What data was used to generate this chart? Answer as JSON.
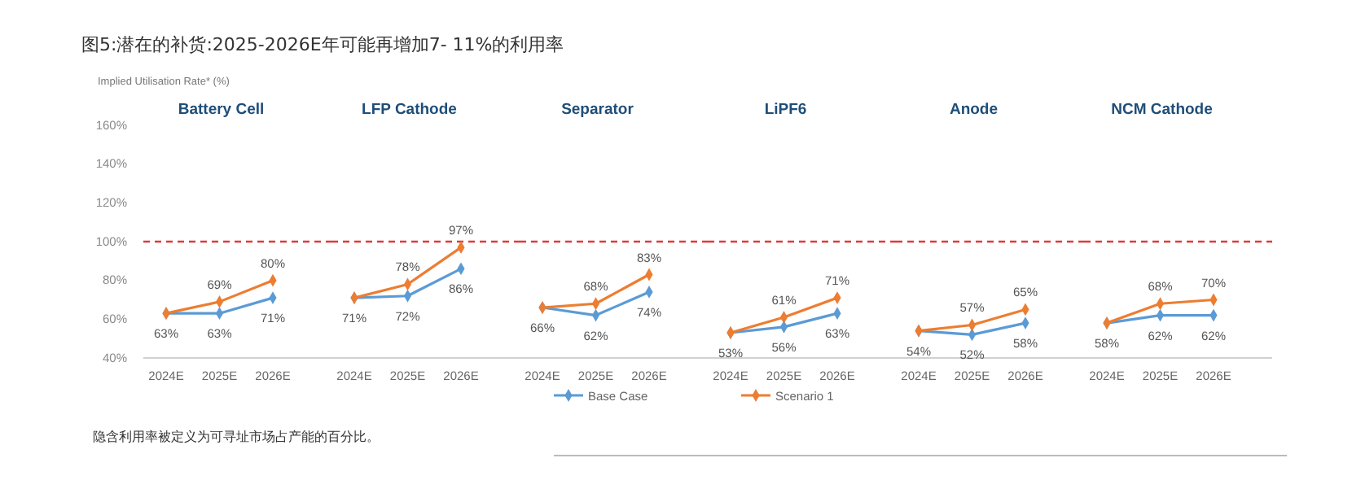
{
  "chart_data": [
    {
      "type": "line",
      "title": "图5:潜在的补货:2025-2026E年可能再增加7- 11%的利用率",
      "ylabel": "Implied Utilisation Rate* (%)",
      "subtitle": "Battery Cell",
      "categories": [
        "2024E",
        "2025E",
        "2026E"
      ],
      "ylim": [
        40,
        160
      ],
      "yticks": [
        {
          "value": 40,
          "label": "40%"
        },
        {
          "value": 60,
          "label": "60%"
        },
        {
          "value": 80,
          "label": "80%"
        },
        {
          "value": 100,
          "label": "100%"
        },
        {
          "value": 120,
          "label": "120%"
        },
        {
          "value": 140,
          "label": "140%"
        },
        {
          "value": 160,
          "label": "160%"
        }
      ],
      "marker": "diamond",
      "legend": "bottom",
      "ref_lines": [
        {
          "axis": "y",
          "value": 100,
          "color": "#e03a3a",
          "line_style": "dashed"
        }
      ],
      "annotations": [
        "隐含利用率被定义为可寻址市场占产能的百分比。"
      ],
      "series": [
        {
          "name": "Base Case",
          "color": "#5b9bd5",
          "values": [
            63,
            63,
            71
          ],
          "value_labels": [
            "63%",
            "63%",
            "71%"
          ]
        },
        {
          "name": "Scenario 1",
          "color": "#ed7d31",
          "values": [
            63,
            69,
            80
          ],
          "value_labels": [
            null,
            "69%",
            "80%"
          ]
        }
      ]
    },
    {
      "type": "line",
      "subtitle": "LFP Cathode",
      "categories": [
        "2024E",
        "2025E",
        "2026E"
      ],
      "ylim": [
        40,
        160
      ],
      "tick_labels": "x",
      "marker": "diamond",
      "ref_lines": [
        {
          "axis": "y",
          "value": 100,
          "color": "#e03a3a",
          "line_style": "dashed"
        }
      ],
      "series": [
        {
          "color": "#5b9bd5",
          "values": [
            71,
            72,
            86
          ],
          "value_labels": [
            "71%",
            "72%",
            "86%"
          ]
        },
        {
          "color": "#ed7d31",
          "values": [
            71,
            78,
            97
          ],
          "value_labels": [
            null,
            "78%",
            "97%"
          ]
        }
      ]
    },
    {
      "type": "line",
      "subtitle": "Separator",
      "categories": [
        "2024E",
        "2025E",
        "2026E"
      ],
      "ylim": [
        40,
        160
      ],
      "tick_labels": "x",
      "marker": "diamond",
      "ref_lines": [
        {
          "axis": "y",
          "value": 100,
          "color": "#e03a3a",
          "line_style": "dashed"
        }
      ],
      "series": [
        {
          "color": "#5b9bd5",
          "values": [
            66,
            62,
            74
          ],
          "value_labels": [
            "66%",
            "62%",
            "74%"
          ]
        },
        {
          "color": "#ed7d31",
          "values": [
            66,
            68,
            83
          ],
          "value_labels": [
            null,
            "68%",
            "83%"
          ]
        }
      ]
    },
    {
      "type": "line",
      "subtitle": "LiPF6",
      "categories": [
        "2024E",
        "2025E",
        "2026E"
      ],
      "ylim": [
        40,
        160
      ],
      "tick_labels": "x",
      "marker": "diamond",
      "ref_lines": [
        {
          "axis": "y",
          "value": 100,
          "color": "#e03a3a",
          "line_style": "dashed"
        }
      ],
      "series": [
        {
          "color": "#5b9bd5",
          "values": [
            53,
            56,
            63
          ],
          "value_labels": [
            "53%",
            "56%",
            "63%"
          ]
        },
        {
          "color": "#ed7d31",
          "values": [
            53,
            61,
            71
          ],
          "value_labels": [
            null,
            "61%",
            "71%"
          ]
        }
      ]
    },
    {
      "type": "line",
      "subtitle": "Anode",
      "categories": [
        "2024E",
        "2025E",
        "2026E"
      ],
      "ylim": [
        40,
        160
      ],
      "tick_labels": "x",
      "marker": "diamond",
      "ref_lines": [
        {
          "axis": "y",
          "value": 100,
          "color": "#e03a3a",
          "line_style": "dashed"
        }
      ],
      "series": [
        {
          "color": "#5b9bd5",
          "values": [
            54,
            52,
            58
          ],
          "value_labels": [
            "54%",
            "52%",
            "58%"
          ]
        },
        {
          "color": "#ed7d31",
          "values": [
            54,
            57,
            65
          ],
          "value_labels": [
            null,
            "57%",
            "65%"
          ]
        }
      ]
    },
    {
      "type": "line",
      "subtitle": "NCM Cathode",
      "categories": [
        "2024E",
        "2025E",
        "2026E"
      ],
      "ylim": [
        40,
        160
      ],
      "tick_labels": "x",
      "marker": "diamond",
      "ref_lines": [
        {
          "axis": "y",
          "value": 100,
          "color": "#e03a3a",
          "line_style": "dashed"
        }
      ],
      "series": [
        {
          "color": "#5b9bd5",
          "values": [
            58,
            62,
            62
          ],
          "value_labels": [
            "58%",
            "62%",
            "62%"
          ]
        },
        {
          "color": "#ed7d31",
          "values": [
            58,
            68,
            70
          ],
          "value_labels": [
            null,
            "68%",
            "70%"
          ]
        }
      ]
    }
  ]
}
